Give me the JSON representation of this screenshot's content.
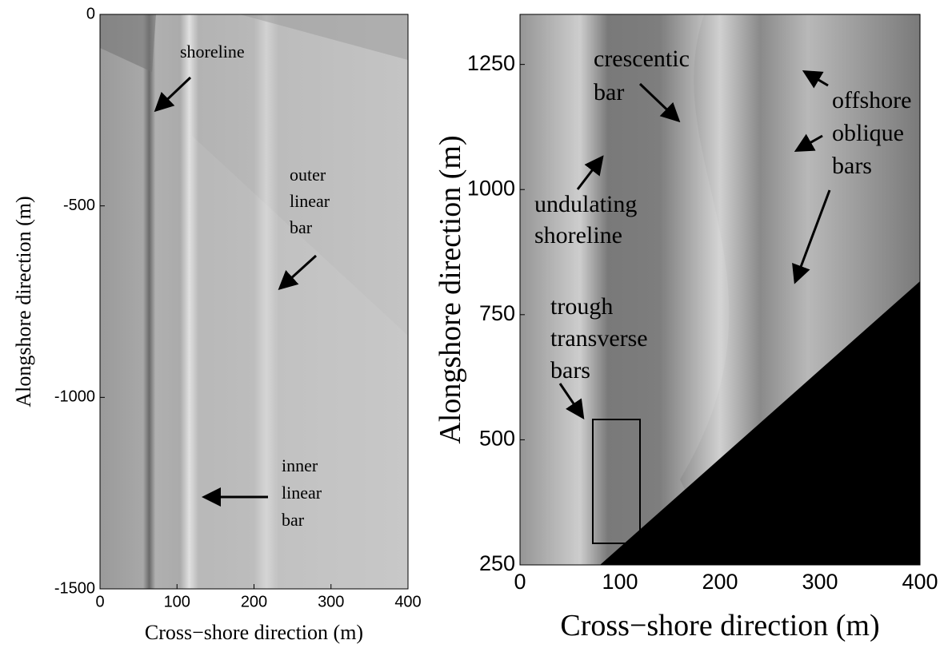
{
  "chart_data": [
    {
      "type": "image",
      "xlabel": "Cross−shore direction  (m)",
      "ylabel": "Alongshore direction  (m)",
      "xlim": [
        0,
        400
      ],
      "ylim": [
        -1500,
        0
      ],
      "xticks": [
        0,
        100,
        200,
        300,
        400
      ],
      "yticks": [
        -1500,
        -1000,
        -500,
        0
      ],
      "annotations": [
        {
          "lines": [
            "shoreline"
          ]
        },
        {
          "lines": [
            "outer",
            "linear",
            "bar"
          ]
        },
        {
          "lines": [
            "inner",
            "linear",
            "bar"
          ]
        }
      ]
    },
    {
      "type": "image",
      "xlabel": "Cross−shore direction (m)",
      "ylabel": "Alongshore direction (m)",
      "xlim": [
        0,
        400
      ],
      "ylim": [
        250,
        1350
      ],
      "xticks": [
        0,
        100,
        200,
        300,
        400
      ],
      "yticks": [
        250,
        500,
        750,
        1000,
        1250
      ],
      "annotations": [
        {
          "lines": [
            "crescentic",
            "bar"
          ]
        },
        {
          "lines": [
            "undulating",
            "shoreline"
          ]
        },
        {
          "lines": [
            "offshore",
            "oblique",
            "bars"
          ]
        },
        {
          "lines": [
            "trough",
            "transverse",
            "bars"
          ]
        }
      ]
    }
  ]
}
